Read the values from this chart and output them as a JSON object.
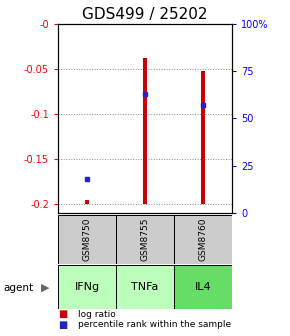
{
  "title": "GDS499 / 25202",
  "samples": [
    "GSM8750",
    "GSM8755",
    "GSM8760"
  ],
  "agents": [
    "IFNg",
    "TNFa",
    "IL4"
  ],
  "log_ratios": [
    -0.195,
    -0.038,
    -0.053
  ],
  "percentile_ranks_pct": [
    18,
    63,
    57
  ],
  "ylim_left": [
    -0.21,
    0.0
  ],
  "ylim_right": [
    0,
    100
  ],
  "yticks_left": [
    -0.2,
    -0.15,
    -0.1,
    -0.05,
    0.0
  ],
  "yticks_right": [
    0,
    25,
    50,
    75,
    100
  ],
  "ytick_labels_left": [
    "-0.2",
    "-0.15",
    "-0.1",
    "-0.05",
    "-0"
  ],
  "ytick_labels_right": [
    "0",
    "25",
    "50",
    "75",
    "100%"
  ],
  "bar_color": "#cc0000",
  "percentile_color": "#2222cc",
  "sample_bg_color": "#cccccc",
  "agent_bg_color_light": "#bbffbb",
  "agent_bg_color_dark": "#66dd66",
  "grid_color": "#888888",
  "title_fontsize": 11,
  "bar_width": 0.08
}
